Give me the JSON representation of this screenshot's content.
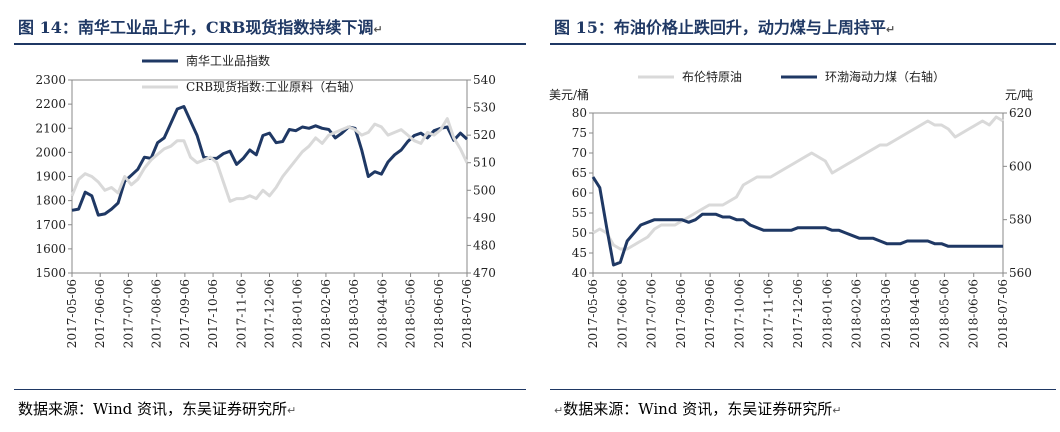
{
  "left_panel": {
    "title": "图 14：南华工业品上升，CRB现货指数持续下调",
    "source": "数据来源：Wind 资讯，东吴证券研究所",
    "para_mark": "↵",
    "chart_data": {
      "type": "line",
      "x_tick_labels": [
        "2017-05-06",
        "2017-06-06",
        "2017-07-06",
        "2017-08-06",
        "2017-09-06",
        "2017-10-06",
        "2017-11-06",
        "2017-12-06",
        "2018-01-06",
        "2018-02-06",
        "2018-03-06",
        "2018-04-06",
        "2018-05-06",
        "2018-06-06",
        "2018-07-06"
      ],
      "y_left": {
        "ticks": [
          1500,
          1600,
          1700,
          1800,
          1900,
          2000,
          2100,
          2200,
          2300
        ],
        "min": 1500,
        "max": 2300
      },
      "y_right": {
        "ticks": [
          470,
          480,
          490,
          500,
          510,
          520,
          530,
          540
        ],
        "min": 470,
        "max": 540
      },
      "legend_position": "top-center",
      "series": [
        {
          "name": "南华工业品指数",
          "axis": "left",
          "color": "#1f3864",
          "values": [
            1760,
            1765,
            1835,
            1820,
            1740,
            1745,
            1765,
            1790,
            1880,
            1905,
            1930,
            1980,
            1975,
            2040,
            2060,
            2120,
            2180,
            2190,
            2130,
            2070,
            1980,
            1975,
            1975,
            1995,
            2005,
            1950,
            1975,
            2010,
            1990,
            2070,
            2080,
            2040,
            2045,
            2095,
            2090,
            2105,
            2100,
            2110,
            2100,
            2095,
            2060,
            2080,
            2105,
            2100,
            2010,
            1900,
            1920,
            1910,
            1960,
            1990,
            2010,
            2045,
            2070,
            2080,
            2060,
            2090,
            2100,
            2105,
            2050,
            2080,
            2055
          ]
        },
        {
          "name": "CRB现货指数:工业原料（右轴）",
          "axis": "right",
          "color": "#d9d9d9",
          "values": [
            498,
            504,
            506,
            505,
            503,
            500,
            501,
            499,
            505,
            502,
            504,
            508,
            511,
            513,
            515,
            516,
            518,
            518,
            512,
            510,
            511,
            512,
            510,
            503,
            496,
            497,
            497,
            498,
            497,
            500,
            498,
            501,
            505,
            508,
            511,
            514,
            516,
            519,
            517,
            520,
            521,
            522,
            523,
            522,
            520,
            521,
            524,
            523,
            520,
            521,
            522,
            520,
            518,
            517,
            521,
            520,
            522,
            526,
            519,
            515,
            510
          ]
        }
      ]
    }
  },
  "right_panel": {
    "title": "图 15：布油价格止跌回升，动力煤与上周持平",
    "source": "数据来源：Wind 资讯，东吴证券研究所",
    "para_mark": "↵",
    "chart_data": {
      "type": "line",
      "left_unit": "美元/桶",
      "right_unit": "元/吨",
      "x_tick_labels": [
        "2017-05-06",
        "2017-06-06",
        "2017-07-06",
        "2017-08-06",
        "2017-09-06",
        "2017-10-06",
        "2017-11-06",
        "2017-12-06",
        "2018-01-06",
        "2018-02-06",
        "2018-03-06",
        "2018-04-06",
        "2018-05-06",
        "2018-06-06",
        "2018-07-06"
      ],
      "y_left": {
        "ticks": [
          40,
          45,
          50,
          55,
          60,
          65,
          70,
          75,
          80
        ],
        "min": 40,
        "max": 80
      },
      "y_right": {
        "ticks": [
          560,
          580,
          600,
          620
        ],
        "min": 560,
        "max": 620
      },
      "legend_position": "top",
      "series": [
        {
          "name": "布伦特原油",
          "axis": "left",
          "color": "#d9d9d9",
          "values": [
            50,
            51,
            50,
            47,
            46,
            46,
            47,
            48,
            49,
            51,
            52,
            52,
            52,
            53,
            54,
            55,
            56,
            57,
            57,
            57,
            58,
            59,
            62,
            63,
            64,
            64,
            64,
            65,
            66,
            67,
            68,
            69,
            70,
            69,
            68,
            65,
            66,
            67,
            68,
            69,
            70,
            71,
            72,
            72,
            73,
            74,
            75,
            76,
            77,
            78,
            77,
            77,
            76,
            74,
            75,
            76,
            77,
            78,
            77,
            79,
            78
          ]
        },
        {
          "name": "环渤海动力煤（右轴）",
          "axis": "right",
          "color": "#1f3864",
          "values": [
            596,
            592,
            577,
            563,
            564,
            572,
            575,
            578,
            579,
            580,
            580,
            580,
            580,
            580,
            579,
            580,
            582,
            582,
            582,
            581,
            581,
            580,
            580,
            578,
            577,
            576,
            576,
            576,
            576,
            576,
            577,
            577,
            577,
            577,
            577,
            576,
            576,
            575,
            574,
            573,
            573,
            573,
            572,
            571,
            571,
            571,
            572,
            572,
            572,
            572,
            571,
            571,
            570,
            570,
            570,
            570,
            570,
            570,
            570,
            570,
            570
          ]
        }
      ]
    }
  }
}
